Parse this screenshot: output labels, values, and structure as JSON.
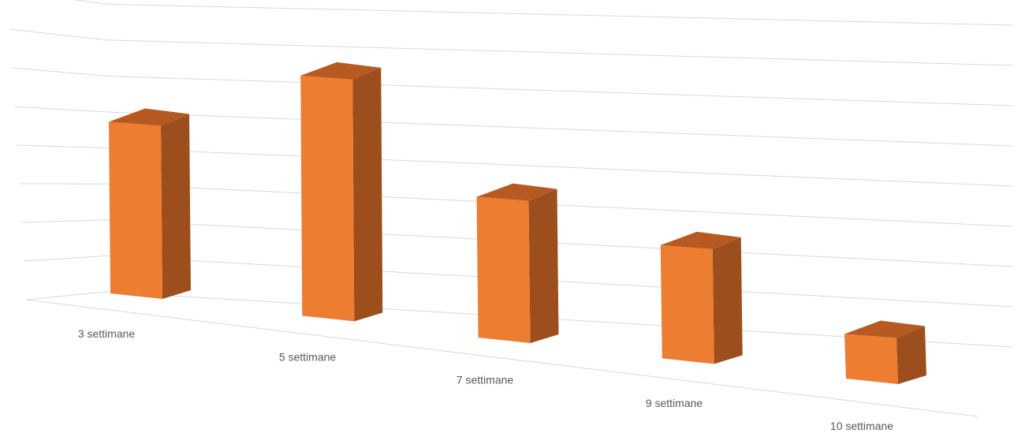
{
  "chart_data": {
    "type": "bar",
    "style": "3d-column",
    "categories": [
      "3 settimane",
      "5 settimane",
      "7 settimane",
      "9 settimane",
      "10 settimane"
    ],
    "values": [
      5.0,
      7.0,
      4.1,
      3.3,
      1.3
    ],
    "ylim": [
      0,
      8
    ],
    "grid": true,
    "legend": "none",
    "colors": {
      "front": "#ed7d31",
      "side": "#9c4e1c",
      "top": "#b65a21",
      "grid": "#d9d9d9",
      "label": "#595959"
    }
  }
}
